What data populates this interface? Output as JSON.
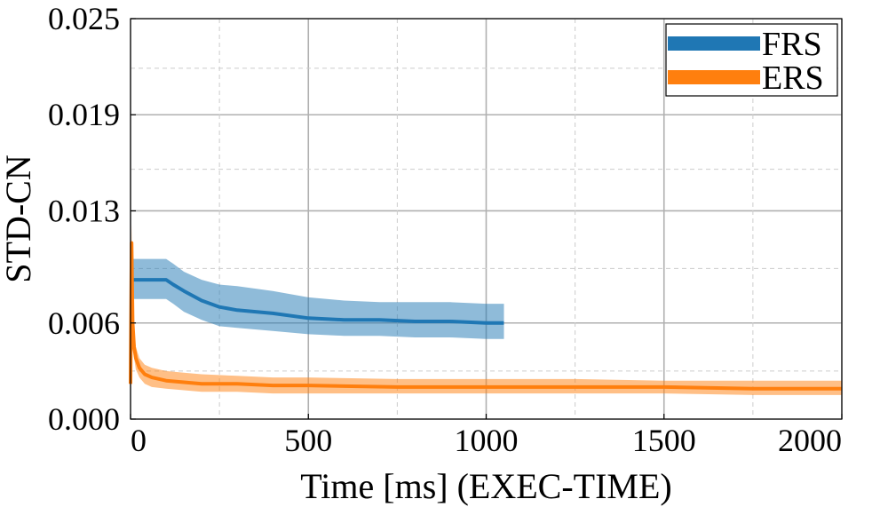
{
  "chart_data": {
    "type": "line",
    "xlabel": "Time [ms] (EXEC-TIME)",
    "ylabel": "STD-CN",
    "xlim": [
      0,
      2000
    ],
    "ylim": [
      0.0,
      0.025
    ],
    "x_ticks": [
      0,
      500,
      1000,
      1500,
      2000
    ],
    "x_tick_labels": [
      "0",
      "500",
      "1000",
      "1500",
      "2000"
    ],
    "y_ticks": [
      0.0,
      0.006,
      0.013,
      0.019,
      0.025
    ],
    "y_tick_labels": [
      "0.000",
      "0.006",
      "0.013",
      "0.019",
      "0.025"
    ],
    "minor_x_ticks": [
      250,
      750,
      1250,
      1750
    ],
    "minor_y_ticks": [
      0.003,
      0.0094,
      0.0156,
      0.0219
    ],
    "grid": true,
    "legend_position": "top-right",
    "series": [
      {
        "name": "FRS",
        "color": "#1f77b4",
        "x": [
          0,
          100,
          120,
          150,
          200,
          250,
          300,
          400,
          500,
          600,
          700,
          800,
          900,
          1000,
          1050
        ],
        "y": [
          0.0087,
          0.0087,
          0.0084,
          0.008,
          0.0074,
          0.007,
          0.0068,
          0.0066,
          0.0063,
          0.0062,
          0.0062,
          0.0061,
          0.0061,
          0.006,
          0.006
        ],
        "lower": [
          0.0075,
          0.0075,
          0.0072,
          0.0067,
          0.0062,
          0.0058,
          0.0057,
          0.0055,
          0.0053,
          0.0052,
          0.0052,
          0.0051,
          0.0051,
          0.005,
          0.005
        ],
        "upper": [
          0.01,
          0.01,
          0.0097,
          0.0092,
          0.0087,
          0.0084,
          0.0083,
          0.008,
          0.0076,
          0.0074,
          0.0073,
          0.0073,
          0.0073,
          0.0072,
          0.0072
        ]
      },
      {
        "name": "ERS",
        "color": "#ff7f0e",
        "x": [
          0,
          3,
          6,
          10,
          15,
          25,
          40,
          60,
          100,
          150,
          200,
          300,
          400,
          500,
          750,
          1000,
          1250,
          1500,
          1750,
          2000
        ],
        "y": [
          0.0022,
          0.011,
          0.006,
          0.0045,
          0.0038,
          0.0032,
          0.0028,
          0.0026,
          0.0024,
          0.0023,
          0.0022,
          0.0022,
          0.0021,
          0.0021,
          0.002,
          0.002,
          0.002,
          0.002,
          0.0019,
          0.0019
        ],
        "lower": [
          0.0015,
          0.009,
          0.005,
          0.0038,
          0.0031,
          0.0026,
          0.0022,
          0.002,
          0.0019,
          0.0018,
          0.0017,
          0.0017,
          0.0016,
          0.0016,
          0.0016,
          0.0016,
          0.0016,
          0.0016,
          0.0015,
          0.0015
        ],
        "upper": [
          0.003,
          0.0122,
          0.0072,
          0.0053,
          0.0045,
          0.0038,
          0.0034,
          0.0032,
          0.003,
          0.0029,
          0.0028,
          0.0027,
          0.0026,
          0.0026,
          0.0025,
          0.0025,
          0.0025,
          0.0024,
          0.0024,
          0.0024
        ]
      }
    ]
  }
}
